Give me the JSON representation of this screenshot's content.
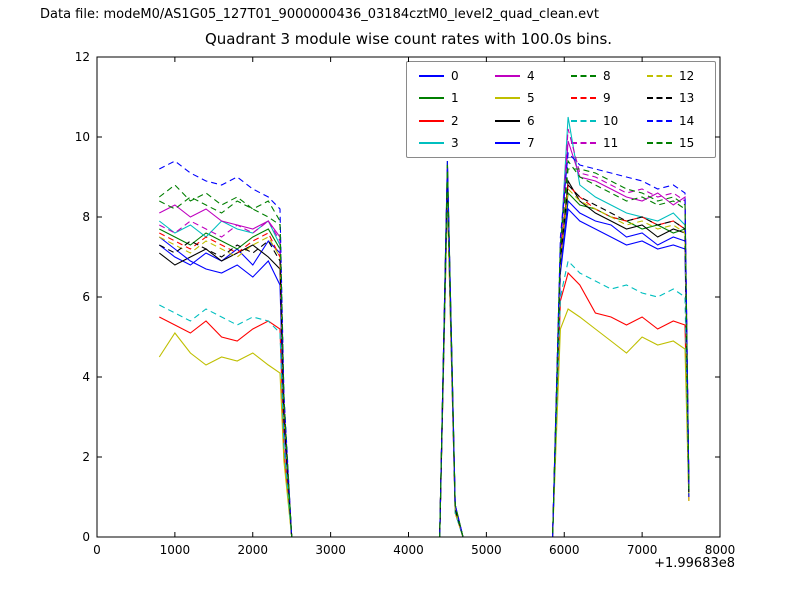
{
  "header": {
    "datafile_label": "Data file: modeM0/AS1G05_127T01_9000000436_03184cztM0_level2_quad_clean.evt"
  },
  "chart_data": {
    "type": "line",
    "title": "Quadrant 3 module wise count rates with 100.0s bins.",
    "xlabel": "",
    "ylabel": "",
    "xlim": [
      0,
      8000
    ],
    "ylim": [
      0,
      12
    ],
    "x_offset_text": "+1.99683e8",
    "xticks": [
      0,
      1000,
      2000,
      3000,
      4000,
      5000,
      6000,
      7000,
      8000
    ],
    "yticks": [
      0,
      2,
      4,
      6,
      8,
      10,
      12
    ],
    "grid": false,
    "legend_position": "upper right inside",
    "legend_columns": 4,
    "x": [
      800,
      1000,
      1200,
      1400,
      1600,
      1800,
      2000,
      2200,
      2350,
      2400,
      2500,
      4400,
      4500,
      4600,
      4700,
      5850,
      5950,
      6050,
      6200,
      6400,
      6600,
      6800,
      7000,
      7200,
      7400,
      7550,
      7600
    ],
    "series": [
      {
        "name": "0",
        "color": "#0000ff",
        "dash": false,
        "values": [
          7.3,
          7.0,
          6.8,
          7.1,
          6.9,
          7.2,
          6.8,
          7.4,
          7.1,
          3.0,
          0,
          0,
          8.9,
          0.7,
          0,
          0,
          6.8,
          8.4,
          8.1,
          7.9,
          7.8,
          7.5,
          7.6,
          7.3,
          7.5,
          7.4,
          1.1
        ]
      },
      {
        "name": "1",
        "color": "#007f00",
        "dash": false,
        "values": [
          7.7,
          7.5,
          7.3,
          7.6,
          7.4,
          7.2,
          7.5,
          7.7,
          7.2,
          3.2,
          0,
          0,
          9.4,
          0.8,
          0,
          0,
          7.0,
          8.6,
          8.3,
          8.2,
          8.0,
          7.9,
          7.7,
          7.8,
          7.6,
          7.7,
          1.2
        ]
      },
      {
        "name": "2",
        "color": "#ff0000",
        "dash": false,
        "values": [
          5.5,
          5.3,
          5.1,
          5.4,
          5.0,
          4.9,
          5.2,
          5.4,
          5.2,
          2.2,
          0,
          0,
          8.6,
          0.6,
          0,
          0,
          5.9,
          6.6,
          6.3,
          5.6,
          5.5,
          5.3,
          5.5,
          5.2,
          5.4,
          5.3,
          0.9
        ]
      },
      {
        "name": "3",
        "color": "#00bfbf",
        "dash": false,
        "values": [
          7.9,
          7.6,
          7.8,
          7.5,
          7.9,
          7.7,
          7.6,
          7.9,
          7.3,
          3.3,
          0,
          0,
          9.2,
          0.8,
          0,
          0,
          7.2,
          10.5,
          8.8,
          8.5,
          8.3,
          8.1,
          8.0,
          7.9,
          8.1,
          7.8,
          1.2
        ]
      },
      {
        "name": "4",
        "color": "#bf00bf",
        "dash": false,
        "values": [
          8.1,
          8.3,
          8.0,
          8.2,
          7.9,
          7.8,
          7.7,
          7.9,
          7.5,
          3.4,
          0,
          0,
          9.3,
          0.8,
          0,
          0,
          7.1,
          9.9,
          9.0,
          8.9,
          8.7,
          8.5,
          8.4,
          8.6,
          8.3,
          8.5,
          1.3
        ]
      },
      {
        "name": "5",
        "color": "#bfbf00",
        "dash": false,
        "values": [
          4.5,
          5.1,
          4.6,
          4.3,
          4.5,
          4.4,
          4.6,
          4.3,
          4.1,
          1.9,
          0,
          0,
          8.5,
          0.6,
          0,
          0,
          5.2,
          5.7,
          5.5,
          5.2,
          4.9,
          4.6,
          5.0,
          4.8,
          4.9,
          4.7,
          0.9
        ]
      },
      {
        "name": "6",
        "color": "#000000",
        "dash": false,
        "values": [
          7.1,
          6.8,
          7.0,
          7.2,
          6.9,
          7.1,
          7.3,
          7.0,
          6.7,
          3.0,
          0,
          0,
          9.1,
          0.7,
          0,
          0,
          6.9,
          8.9,
          8.4,
          8.1,
          7.9,
          7.7,
          7.8,
          7.5,
          7.7,
          7.6,
          1.1
        ]
      },
      {
        "name": "7",
        "color": "#0000ff",
        "dash": false,
        "values": [
          7.5,
          7.2,
          6.9,
          6.7,
          6.6,
          6.8,
          6.5,
          6.9,
          6.3,
          2.8,
          0,
          0,
          8.8,
          0.7,
          0,
          0,
          6.6,
          8.2,
          7.9,
          7.7,
          7.5,
          7.3,
          7.4,
          7.2,
          7.3,
          7.2,
          1.0
        ]
      },
      {
        "name": "8",
        "color": "#007f00",
        "dash": true,
        "values": [
          8.5,
          8.8,
          8.4,
          8.6,
          8.3,
          8.5,
          8.2,
          8.4,
          7.9,
          3.5,
          0,
          0,
          9.3,
          0.8,
          0,
          0,
          7.3,
          9.4,
          9.0,
          8.8,
          8.6,
          8.4,
          8.5,
          8.3,
          8.4,
          8.2,
          1.2
        ]
      },
      {
        "name": "9",
        "color": "#ff0000",
        "dash": true,
        "values": [
          7.6,
          7.4,
          7.2,
          7.5,
          7.3,
          7.1,
          7.4,
          7.6,
          7.0,
          3.1,
          0,
          0,
          9.0,
          0.7,
          0,
          0,
          7.0,
          8.8,
          8.5,
          8.2,
          8.0,
          7.9,
          8.0,
          7.8,
          7.9,
          7.7,
          1.1
        ]
      },
      {
        "name": "10",
        "color": "#00bfbf",
        "dash": true,
        "values": [
          5.8,
          5.6,
          5.4,
          5.7,
          5.5,
          5.3,
          5.5,
          5.4,
          5.1,
          2.3,
          0,
          0,
          8.7,
          0.6,
          0,
          0,
          6.0,
          6.9,
          6.6,
          6.4,
          6.2,
          6.3,
          6.1,
          6.0,
          6.2,
          6.0,
          1.0
        ]
      },
      {
        "name": "11",
        "color": "#bf00bf",
        "dash": true,
        "values": [
          7.8,
          7.6,
          7.9,
          7.7,
          7.5,
          7.8,
          7.6,
          7.9,
          7.4,
          3.2,
          0,
          0,
          9.2,
          0.8,
          0,
          0,
          7.2,
          10.2,
          9.1,
          9.0,
          8.8,
          8.6,
          8.7,
          8.5,
          8.6,
          8.4,
          1.2
        ]
      },
      {
        "name": "12",
        "color": "#bfbf00",
        "dash": true,
        "values": [
          7.5,
          7.3,
          7.1,
          7.4,
          7.2,
          7.0,
          7.3,
          7.5,
          7.0,
          3.0,
          0,
          0,
          8.9,
          0.7,
          0,
          0,
          6.9,
          8.7,
          8.4,
          8.2,
          8.0,
          7.8,
          7.9,
          7.7,
          7.8,
          7.6,
          1.1
        ]
      },
      {
        "name": "13",
        "color": "#000000",
        "dash": true,
        "values": [
          7.3,
          7.1,
          7.4,
          7.2,
          7.0,
          7.3,
          7.1,
          7.4,
          6.9,
          3.0,
          0,
          0,
          9.0,
          0.7,
          0,
          0,
          7.0,
          8.8,
          8.5,
          8.3,
          8.1,
          7.9,
          8.0,
          7.8,
          7.9,
          7.7,
          1.1
        ]
      },
      {
        "name": "14",
        "color": "#0000ff",
        "dash": true,
        "values": [
          9.2,
          9.4,
          9.1,
          8.9,
          8.8,
          9.0,
          8.7,
          8.5,
          8.2,
          3.6,
          0,
          0,
          9.4,
          0.8,
          0,
          0,
          7.5,
          9.6,
          9.3,
          9.2,
          9.1,
          9.0,
          8.9,
          8.7,
          8.8,
          8.6,
          1.3
        ]
      },
      {
        "name": "15",
        "color": "#007f00",
        "dash": true,
        "values": [
          8.4,
          8.2,
          8.5,
          8.3,
          8.1,
          8.4,
          8.2,
          8.0,
          7.8,
          3.4,
          0,
          0,
          9.3,
          0.8,
          0,
          0,
          7.3,
          9.2,
          9.2,
          9.1,
          8.9,
          8.7,
          8.6,
          8.4,
          8.5,
          8.3,
          1.2
        ]
      }
    ]
  }
}
